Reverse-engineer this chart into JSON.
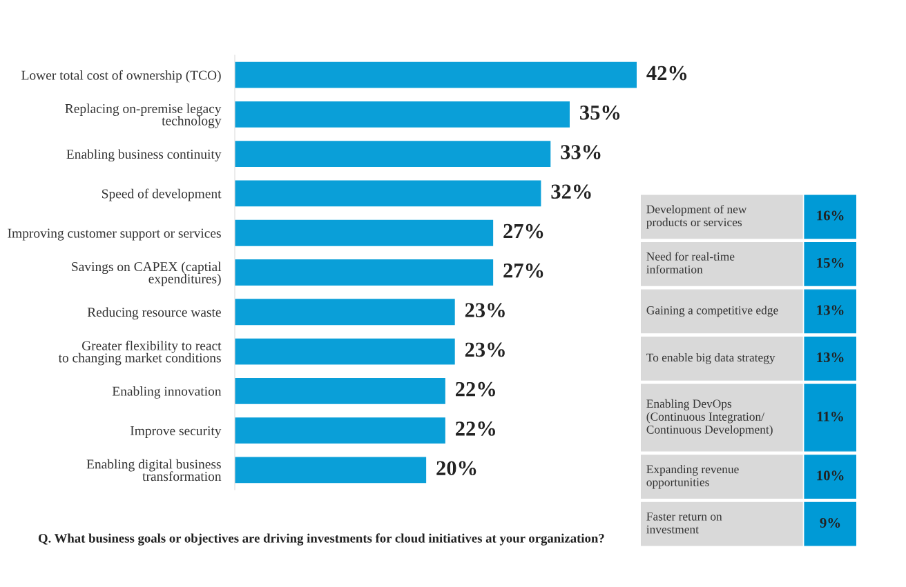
{
  "chart_data": [
    {
      "type": "bar",
      "orientation": "horizontal",
      "color": "#0a9fd8",
      "categories": [
        "Lower total cost of ownership (TCO)",
        "Replacing on-premise legacy\ntechnology",
        "Enabling business continuity",
        "Speed of development",
        "Improving customer support or services",
        "Savings on CAPEX (captial\nexpenditures)",
        "Reducing resource waste",
        "Greater flexibility to react\nto changing market conditions",
        "Enabling innovation",
        "Improve security",
        "Enabling digital business\ntransformation"
      ],
      "values": [
        42,
        35,
        33,
        32,
        27,
        27,
        23,
        23,
        22,
        22,
        20
      ],
      "value_labels": [
        "42%",
        "35%",
        "33%",
        "32%",
        "27%",
        "27%",
        "23%",
        "23%",
        "22%",
        "22%",
        "20%"
      ],
      "annotations": [
        "Q. What business goals or objectives are driving investments for cloud initiatives at your organization?"
      ]
    },
    {
      "type": "other",
      "color": "#009ad6",
      "colors": [
        "#d9d9d9",
        "#d9d9d9",
        "#d9d9d9",
        "#d9d9d9",
        "#d9d9d9",
        "#d9d9d9",
        "#d9d9d9"
      ],
      "categories": [
        "Development of new\nproducts or services",
        "Need for real-time\ninformation",
        "Gaining a competitive edge",
        "To enable big data strategy",
        "Enabling DevOps\n(Continuous Integration/\nContinuous Development)",
        "Expanding revenue\nopportunities",
        "Faster return on\ninvestment"
      ],
      "value_labels": [
        "16%",
        "15%",
        "13%",
        "13%",
        "11%",
        "10%",
        "9%"
      ]
    }
  ]
}
